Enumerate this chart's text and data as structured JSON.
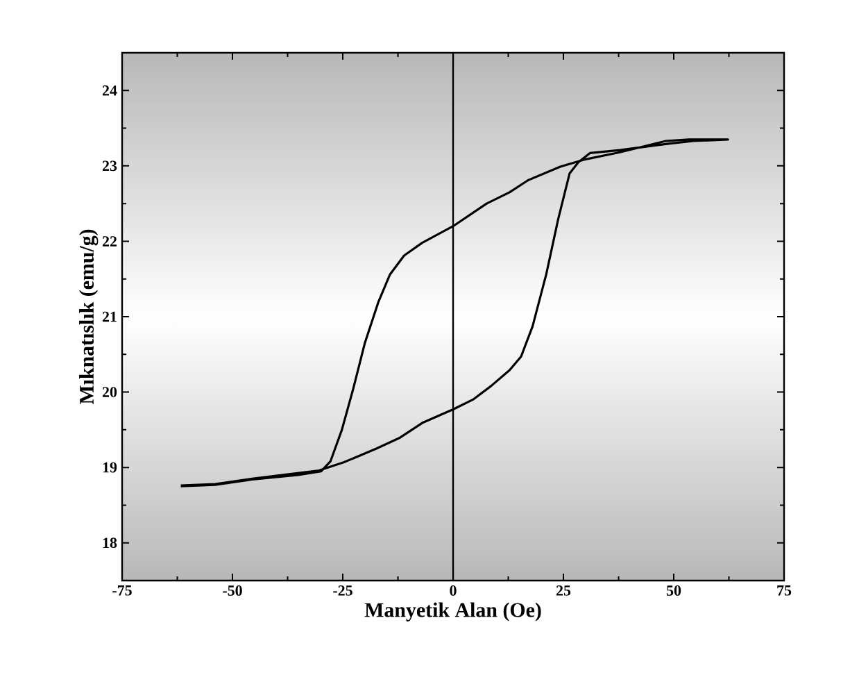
{
  "chart_data": {
    "type": "line",
    "xlabel": "Manyetik Alan (Oe)",
    "ylabel": "Mıknatıslık (emu/g)",
    "xlim": [
      -75,
      75
    ],
    "ylim": [
      17.5,
      24.5
    ],
    "xticks": [
      -75,
      -50,
      -25,
      0,
      25,
      50,
      75
    ],
    "yticks": [
      18,
      19,
      20,
      21,
      22,
      23,
      24
    ],
    "marker": "none",
    "line_style": "solid",
    "ref_lines": [
      {
        "axis": "x",
        "value": 0,
        "color": "#000000",
        "line_style": "solid"
      }
    ],
    "series": [
      {
        "color": "#000000",
        "x": [
          -61.7,
          -53.9,
          -45.5,
          -37.2,
          -30.4,
          -24.7,
          -17.4,
          -12.2,
          -7.0,
          0,
          4.5,
          8.6,
          12.8,
          15.4,
          18.0,
          21.1,
          23.8,
          26.4,
          28.4,
          31.0,
          37.8,
          48.2,
          54.5,
          62.3,
          53.4,
          48.2,
          37.8,
          29.5,
          24.3,
          17.0,
          12.8,
          7.6,
          0,
          -7.0,
          -11.1,
          -14.3,
          -16.9,
          -20.0,
          -22.6,
          -25.2,
          -27.8,
          -29.9,
          -35.1,
          -45.5,
          -53.9,
          -61.7
        ],
        "values": [
          18.76,
          18.78,
          18.85,
          18.91,
          18.96,
          19.07,
          19.25,
          19.39,
          19.59,
          19.77,
          19.9,
          20.08,
          20.29,
          20.47,
          20.87,
          21.56,
          22.29,
          22.9,
          23.05,
          23.17,
          23.21,
          23.29,
          23.33,
          23.35,
          23.35,
          23.33,
          23.18,
          23.08,
          22.99,
          22.81,
          22.65,
          22.5,
          22.2,
          21.98,
          21.81,
          21.56,
          21.2,
          20.65,
          20.05,
          19.5,
          19.08,
          18.95,
          18.9,
          18.84,
          18.77,
          18.75
        ]
      }
    ]
  }
}
